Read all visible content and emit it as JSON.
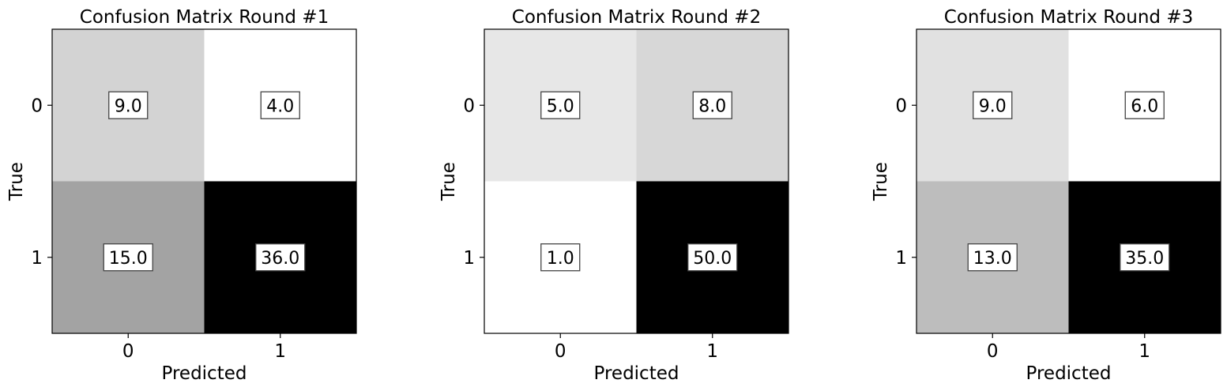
{
  "chart_data": [
    {
      "type": "heatmap",
      "title": "Confusion Matrix Round #1",
      "xlabel": "Predicted",
      "ylabel": "True",
      "x_ticks": [
        "0",
        "1"
      ],
      "y_ticks": [
        "0",
        "1"
      ],
      "colormap": "greys",
      "values": [
        [
          9.0,
          4.0
        ],
        [
          15.0,
          36.0
        ]
      ],
      "cell_labels": [
        [
          "9.0",
          "4.0"
        ],
        [
          "15.0",
          "36.0"
        ]
      ]
    },
    {
      "type": "heatmap",
      "title": "Confusion Matrix Round #2",
      "xlabel": "Predicted",
      "ylabel": "True",
      "x_ticks": [
        "0",
        "1"
      ],
      "y_ticks": [
        "0",
        "1"
      ],
      "colormap": "greys",
      "values": [
        [
          5.0,
          8.0
        ],
        [
          1.0,
          50.0
        ]
      ],
      "cell_labels": [
        [
          "5.0",
          "8.0"
        ],
        [
          "1.0",
          "50.0"
        ]
      ]
    },
    {
      "type": "heatmap",
      "title": "Confusion Matrix Round #3",
      "xlabel": "Predicted",
      "ylabel": "True",
      "x_ticks": [
        "0",
        "1"
      ],
      "y_ticks": [
        "0",
        "1"
      ],
      "colormap": "greys",
      "values": [
        [
          9.0,
          6.0
        ],
        [
          13.0,
          35.0
        ]
      ],
      "cell_labels": [
        [
          "9.0",
          "6.0"
        ],
        [
          "13.0",
          "35.0"
        ]
      ]
    }
  ]
}
